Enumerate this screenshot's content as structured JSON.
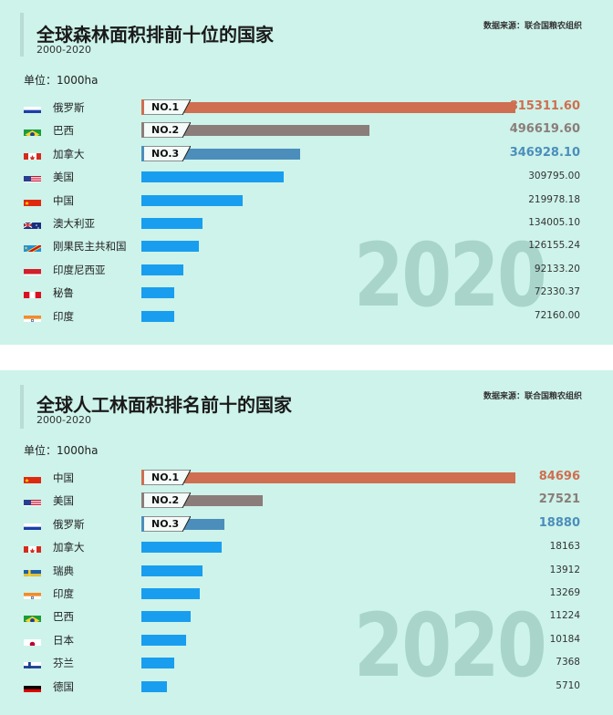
{
  "colors": {
    "bg": "#cdf3ea",
    "no1": "#cf6e50",
    "no2": "#8b7d7a",
    "no3": "#4c8ebb",
    "other": "#199eef"
  },
  "chart_data": [
    {
      "type": "bar",
      "title": "全球森林面积排前十位的国家",
      "subtitle": "2000-2020",
      "source": "数据来源：联合国粮农组织",
      "unit": "单位：1000ha",
      "watermark": "2020",
      "xlim": [
        0,
        815311.6
      ],
      "rows": [
        {
          "name": "俄罗斯",
          "value": 815311.6,
          "label": "815311.60",
          "flag": "russia-flag-icon",
          "rank": "NO.1"
        },
        {
          "name": "巴西",
          "value": 496619.6,
          "label": "496619.60",
          "flag": "brazil-flag-icon",
          "rank": "NO.2"
        },
        {
          "name": "加拿大",
          "value": 346928.1,
          "label": "346928.10",
          "flag": "canada-flag-icon",
          "rank": "NO.3"
        },
        {
          "name": "美国",
          "value": 309795.0,
          "label": "309795.00",
          "flag": "usa-flag-icon"
        },
        {
          "name": "中国",
          "value": 219978.18,
          "label": "219978.18",
          "flag": "china-flag-icon"
        },
        {
          "name": "澳大利亚",
          "value": 134005.1,
          "label": "134005.10",
          "flag": "australia-flag-icon"
        },
        {
          "name": "刚果民主共和国",
          "value": 126155.24,
          "label": "126155.24",
          "flag": "drc-flag-icon"
        },
        {
          "name": "印度尼西亚",
          "value": 92133.2,
          "label": "92133.20",
          "flag": "indonesia-flag-icon"
        },
        {
          "name": "秘鲁",
          "value": 72330.37,
          "label": "72330.37",
          "flag": "peru-flag-icon"
        },
        {
          "name": "印度",
          "value": 72160.0,
          "label": "72160.00",
          "flag": "india-flag-icon"
        }
      ]
    },
    {
      "type": "bar",
      "title": "全球人工林面积排名前十的国家",
      "subtitle": "2000-2020",
      "source": "数据来源：联合国粮农组织",
      "unit": "单位：1000ha",
      "watermark": "2020",
      "xlim": [
        0,
        84696
      ],
      "rows": [
        {
          "name": "中国",
          "value": 84696,
          "label": "84696",
          "flag": "china-flag-icon",
          "rank": "NO.1"
        },
        {
          "name": "美国",
          "value": 27521,
          "label": "27521",
          "flag": "usa-flag-icon",
          "rank": "NO.2"
        },
        {
          "name": "俄罗斯",
          "value": 18880,
          "label": "18880",
          "flag": "russia-flag-icon",
          "rank": "NO.3"
        },
        {
          "name": "加拿大",
          "value": 18163,
          "label": "18163",
          "flag": "canada-flag-icon"
        },
        {
          "name": "瑞典",
          "value": 13912,
          "label": "13912",
          "flag": "sweden-flag-icon"
        },
        {
          "name": "印度",
          "value": 13269,
          "label": "13269",
          "flag": "india-flag-icon"
        },
        {
          "name": "巴西",
          "value": 11224,
          "label": "11224",
          "flag": "brazil-flag-icon"
        },
        {
          "name": "日本",
          "value": 10184,
          "label": "10184",
          "flag": "japan-flag-icon"
        },
        {
          "name": "芬兰",
          "value": 7368,
          "label": "7368",
          "flag": "finland-flag-icon"
        },
        {
          "name": "德国",
          "value": 5710,
          "label": "5710",
          "flag": "germany-flag-icon"
        }
      ]
    }
  ]
}
